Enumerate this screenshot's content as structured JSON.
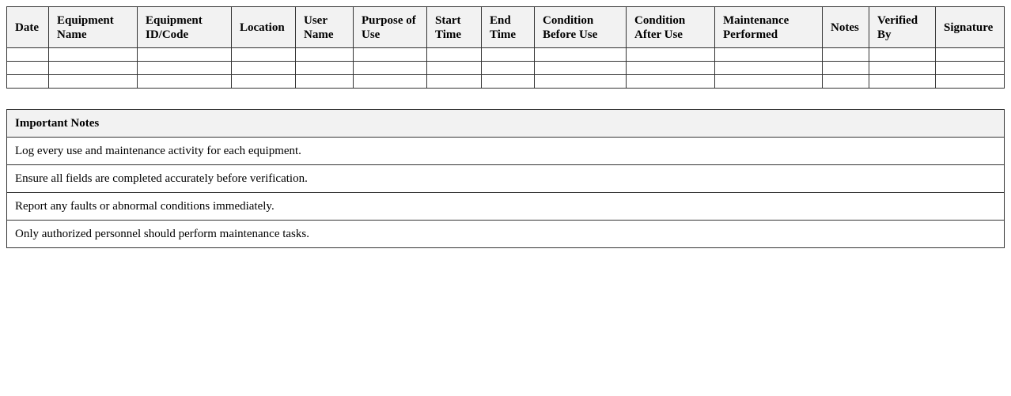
{
  "log_table": {
    "columns": [
      "Date",
      "Equipment Name",
      "Equipment ID/Code",
      "Location",
      "User Name",
      "Purpose of Use",
      "Start Time",
      "End Time",
      "Condition Before Use",
      "Condition After Use",
      "Maintenance Performed",
      "Notes",
      "Verified By",
      "Signature"
    ],
    "empty_rows": 3
  },
  "notes": {
    "title": "Important Notes",
    "items": [
      "Log every use and maintenance activity for each equipment.",
      "Ensure all fields are completed accurately before verification.",
      "Report any faults or abnormal conditions immediately.",
      "Only authorized personnel should perform maintenance tasks."
    ]
  }
}
